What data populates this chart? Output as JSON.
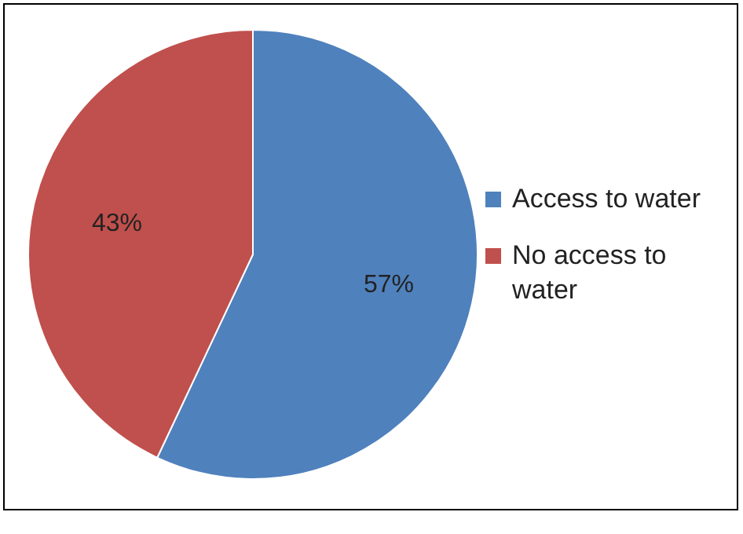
{
  "chart_data": {
    "type": "pie",
    "categories": [
      "Access to water",
      "No access to water"
    ],
    "values": [
      57,
      43
    ],
    "value_labels": [
      "57%",
      "43%"
    ],
    "colors": [
      "#4f81bd",
      "#c0504d"
    ],
    "legend": "right"
  }
}
